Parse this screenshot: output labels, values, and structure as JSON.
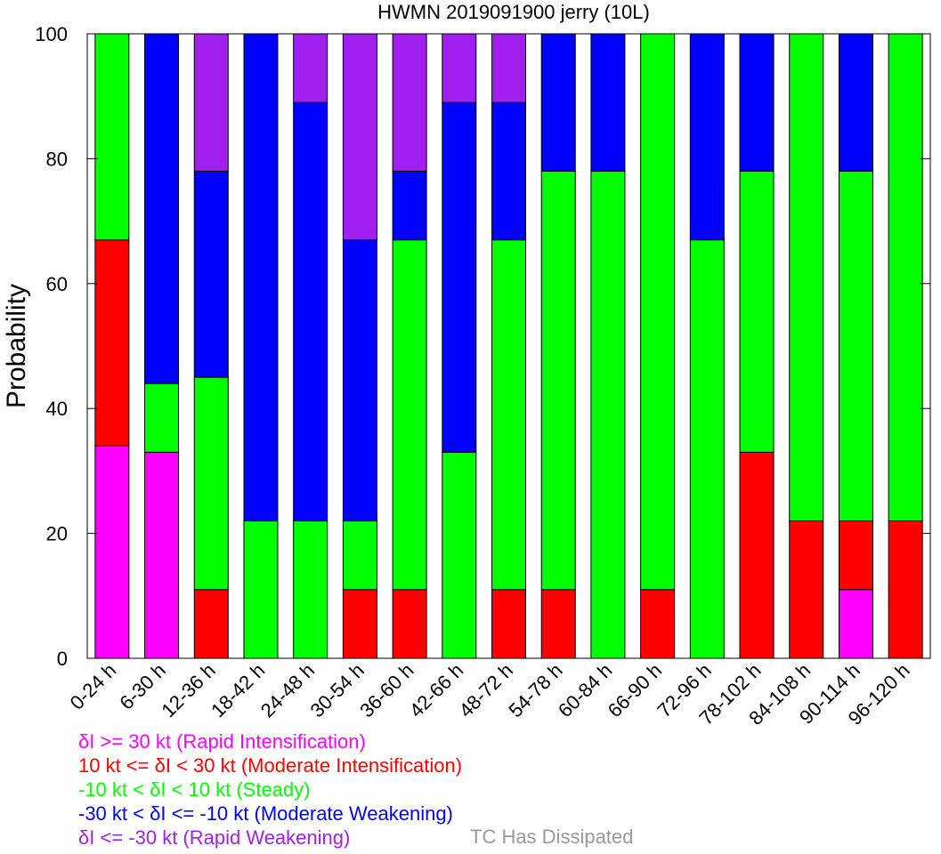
{
  "chart_data": {
    "type": "bar",
    "stacked": true,
    "title": "HWMN 2019091900 jerry (10L)",
    "ylabel": "Probability",
    "xlabel": "",
    "ylim": [
      0,
      100
    ],
    "yticks": [
      0,
      20,
      40,
      60,
      80,
      100
    ],
    "categories": [
      "0-24 h",
      "6-30 h",
      "12-36 h",
      "18-42 h",
      "24-48 h",
      "30-54 h",
      "36-60 h",
      "42-66 h",
      "48-72 h",
      "54-78 h",
      "60-84 h",
      "66-90 h",
      "72-96 h",
      "78-102 h",
      "84-108 h",
      "90-114 h",
      "96-120 h"
    ],
    "series": [
      {
        "name": "δI >= 30 kt (Rapid Intensification)",
        "color": "#ff00ff",
        "values": [
          34,
          33,
          0,
          0,
          0,
          0,
          0,
          0,
          0,
          0,
          0,
          0,
          0,
          0,
          0,
          11,
          0
        ]
      },
      {
        "name": "10 kt <= δI < 30 kt (Moderate Intensification)",
        "color": "#ff0000",
        "values": [
          33,
          0,
          11,
          0,
          0,
          11,
          11,
          0,
          11,
          11,
          0,
          11,
          0,
          33,
          22,
          11,
          22
        ]
      },
      {
        "name": "-10 kt < δI < 10 kt (Steady)",
        "color": "#00ff00",
        "values": [
          33,
          11,
          34,
          22,
          22,
          11,
          56,
          33,
          56,
          67,
          78,
          89,
          67,
          45,
          78,
          56,
          78
        ]
      },
      {
        "name": "-30 kt < δI <= -10 kt (Moderate Weakening)",
        "color": "#0000ff",
        "values": [
          0,
          56,
          33,
          78,
          67,
          45,
          11,
          56,
          22,
          22,
          22,
          0,
          33,
          22,
          0,
          22,
          0
        ]
      },
      {
        "name": "δI <= -30 kt (Rapid Weakening)",
        "color": "#a020f0",
        "values": [
          0,
          0,
          22,
          0,
          11,
          33,
          22,
          11,
          11,
          0,
          0,
          0,
          0,
          0,
          0,
          0,
          0
        ]
      }
    ],
    "extra_legend": {
      "label": "TC Has Dissipated",
      "color": "#999999"
    },
    "grid": false,
    "legend_position": "bottom-left"
  }
}
